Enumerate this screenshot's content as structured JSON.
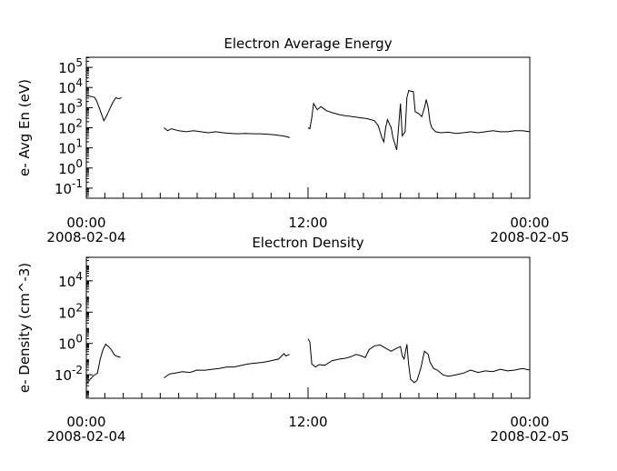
{
  "chart_data": [
    {
      "type": "line",
      "title": "Electron Average Energy",
      "ylabel": "e- Avg En (eV)",
      "yscale": "log",
      "ylim_exp": [
        -1.5,
        5.5
      ],
      "ytick_exps": [
        -1,
        0,
        1,
        2,
        3,
        4,
        5
      ],
      "x_tick_hours": [
        0,
        12,
        24
      ],
      "x_tick_labels": [
        {
          "time": "00:00",
          "date": "2008-02-04"
        },
        {
          "time": "12:00",
          "date": ""
        },
        {
          "time": "00:00",
          "date": "2008-02-05"
        }
      ],
      "x_unit": "hours since 2008-02-04 00:00",
      "xlim": [
        0,
        24
      ],
      "series": [
        {
          "values": [
            [
              0.0,
              3.6
            ],
            [
              0.3,
              3.55
            ],
            [
              0.45,
              3.5
            ],
            [
              0.55,
              3.35
            ],
            [
              0.7,
              3.0
            ],
            [
              0.85,
              2.6
            ],
            [
              0.95,
              2.35
            ],
            [
              1.05,
              2.5
            ],
            [
              1.2,
              2.8
            ],
            [
              1.4,
              3.2
            ],
            [
              1.6,
              3.5
            ],
            [
              1.7,
              3.45
            ],
            [
              1.8,
              3.45
            ],
            [
              1.9,
              3.5
            ]
          ]
        },
        {
          "values": [
            [
              4.2,
              2.0
            ],
            [
              4.4,
              1.85
            ],
            [
              4.6,
              1.95
            ],
            [
              5.0,
              1.85
            ],
            [
              5.4,
              1.8
            ],
            [
              5.8,
              1.85
            ],
            [
              6.2,
              1.8
            ],
            [
              6.6,
              1.75
            ],
            [
              7.0,
              1.8
            ],
            [
              7.4,
              1.75
            ],
            [
              7.8,
              1.72
            ],
            [
              8.2,
              1.7
            ],
            [
              8.6,
              1.72
            ],
            [
              9.0,
              1.7
            ],
            [
              9.4,
              1.7
            ],
            [
              9.8,
              1.68
            ],
            [
              10.2,
              1.65
            ],
            [
              10.6,
              1.6
            ],
            [
              10.9,
              1.55
            ],
            [
              11.0,
              1.5
            ]
          ]
        },
        {
          "values": [
            [
              12.0,
              2.0
            ],
            [
              12.1,
              1.95
            ],
            [
              12.2,
              2.5
            ],
            [
              12.3,
              3.2
            ],
            [
              12.5,
              2.9
            ],
            [
              12.7,
              3.05
            ],
            [
              13.0,
              2.85
            ],
            [
              13.3,
              2.75
            ],
            [
              13.7,
              2.65
            ],
            [
              14.0,
              2.6
            ],
            [
              14.4,
              2.55
            ],
            [
              14.8,
              2.5
            ],
            [
              15.2,
              2.45
            ],
            [
              15.6,
              2.35
            ],
            [
              15.8,
              2.1
            ],
            [
              16.0,
              1.5
            ],
            [
              16.1,
              1.3
            ],
            [
              16.2,
              2.0
            ],
            [
              16.3,
              2.4
            ],
            [
              16.5,
              2.0
            ],
            [
              16.6,
              1.5
            ],
            [
              16.7,
              1.2
            ],
            [
              16.8,
              0.9
            ],
            [
              16.9,
              2.0
            ],
            [
              17.0,
              3.2
            ],
            [
              17.1,
              1.6
            ],
            [
              17.25,
              1.8
            ],
            [
              17.35,
              3.5
            ],
            [
              17.45,
              3.85
            ],
            [
              17.6,
              3.8
            ],
            [
              17.7,
              3.8
            ],
            [
              17.8,
              2.8
            ],
            [
              18.0,
              2.7
            ],
            [
              18.15,
              2.55
            ],
            [
              18.3,
              3.0
            ],
            [
              18.4,
              3.4
            ],
            [
              18.5,
              3.0
            ],
            [
              18.6,
              2.3
            ],
            [
              18.7,
              2.0
            ],
            [
              18.9,
              1.8
            ],
            [
              19.2,
              1.75
            ],
            [
              19.6,
              1.78
            ],
            [
              20.0,
              1.72
            ],
            [
              20.4,
              1.75
            ],
            [
              20.8,
              1.8
            ],
            [
              21.2,
              1.75
            ],
            [
              21.6,
              1.8
            ],
            [
              22.0,
              1.85
            ],
            [
              22.4,
              1.8
            ],
            [
              22.8,
              1.8
            ],
            [
              23.2,
              1.85
            ],
            [
              23.6,
              1.85
            ],
            [
              24.0,
              1.8
            ]
          ]
        }
      ]
    },
    {
      "type": "line",
      "title": "Electron Density",
      "ylabel": "e- Density (cm^-3)",
      "yscale": "log",
      "ylim_exp": [
        -3.5,
        5.5
      ],
      "ytick_exps": [
        -2,
        0,
        2,
        4
      ],
      "x_tick_hours": [
        0,
        12,
        24
      ],
      "x_tick_labels": [
        {
          "time": "00:00",
          "date": "2008-02-04"
        },
        {
          "time": "12:00",
          "date": ""
        },
        {
          "time": "00:00",
          "date": "2008-02-05"
        }
      ],
      "x_unit": "hours since 2008-02-04 00:00",
      "xlim": [
        0,
        24
      ],
      "series": [
        {
          "values": [
            [
              0.0,
              -2.6
            ],
            [
              0.2,
              -2.3
            ],
            [
              0.4,
              -2.05
            ],
            [
              0.6,
              -1.9
            ],
            [
              0.75,
              -1.0
            ],
            [
              0.9,
              -0.4
            ],
            [
              1.05,
              -0.05
            ],
            [
              1.2,
              -0.2
            ],
            [
              1.35,
              -0.4
            ],
            [
              1.5,
              -0.7
            ],
            [
              1.6,
              -0.8
            ],
            [
              1.75,
              -0.85
            ],
            [
              1.85,
              -0.9
            ]
          ]
        },
        {
          "values": [
            [
              4.2,
              -2.2
            ],
            [
              4.5,
              -1.95
            ],
            [
              4.8,
              -1.9
            ],
            [
              5.2,
              -1.8
            ],
            [
              5.6,
              -1.85
            ],
            [
              6.0,
              -1.7
            ],
            [
              6.4,
              -1.72
            ],
            [
              6.8,
              -1.65
            ],
            [
              7.2,
              -1.6
            ],
            [
              7.6,
              -1.5
            ],
            [
              8.0,
              -1.5
            ],
            [
              8.4,
              -1.4
            ],
            [
              8.8,
              -1.3
            ],
            [
              9.2,
              -1.25
            ],
            [
              9.6,
              -1.2
            ],
            [
              10.0,
              -1.1
            ],
            [
              10.4,
              -1.0
            ],
            [
              10.7,
              -0.65
            ],
            [
              10.8,
              -0.8
            ],
            [
              11.0,
              -0.7
            ]
          ]
        },
        {
          "values": [
            [
              12.0,
              0.3
            ],
            [
              12.1,
              0.1
            ],
            [
              12.2,
              -1.3
            ],
            [
              12.4,
              -1.5
            ],
            [
              12.6,
              -1.35
            ],
            [
              12.9,
              -1.4
            ],
            [
              13.3,
              -1.1
            ],
            [
              13.7,
              -1.0
            ],
            [
              14.0,
              -0.95
            ],
            [
              14.3,
              -0.85
            ],
            [
              14.6,
              -0.7
            ],
            [
              14.9,
              -0.8
            ],
            [
              15.1,
              -0.9
            ],
            [
              15.3,
              -0.4
            ],
            [
              15.6,
              -0.15
            ],
            [
              15.9,
              -0.1
            ],
            [
              16.2,
              -0.3
            ],
            [
              16.5,
              -0.5
            ],
            [
              16.8,
              -0.3
            ],
            [
              17.0,
              -0.2
            ],
            [
              17.1,
              -0.8
            ],
            [
              17.2,
              -1.0
            ],
            [
              17.35,
              -0.05
            ],
            [
              17.45,
              -1.4
            ],
            [
              17.55,
              -2.3
            ],
            [
              17.75,
              -2.5
            ],
            [
              17.9,
              -2.35
            ],
            [
              18.1,
              -1.6
            ],
            [
              18.3,
              -0.5
            ],
            [
              18.5,
              -0.7
            ],
            [
              18.6,
              -1.2
            ],
            [
              18.8,
              -1.6
            ],
            [
              19.0,
              -1.7
            ],
            [
              19.3,
              -2.0
            ],
            [
              19.6,
              -2.1
            ],
            [
              20.0,
              -2.0
            ],
            [
              20.4,
              -1.9
            ],
            [
              20.8,
              -1.7
            ],
            [
              21.2,
              -1.85
            ],
            [
              21.6,
              -1.75
            ],
            [
              22.0,
              -1.8
            ],
            [
              22.4,
              -1.65
            ],
            [
              22.8,
              -1.75
            ],
            [
              23.2,
              -1.7
            ],
            [
              23.6,
              -1.6
            ],
            [
              24.0,
              -1.7
            ]
          ]
        }
      ]
    }
  ]
}
